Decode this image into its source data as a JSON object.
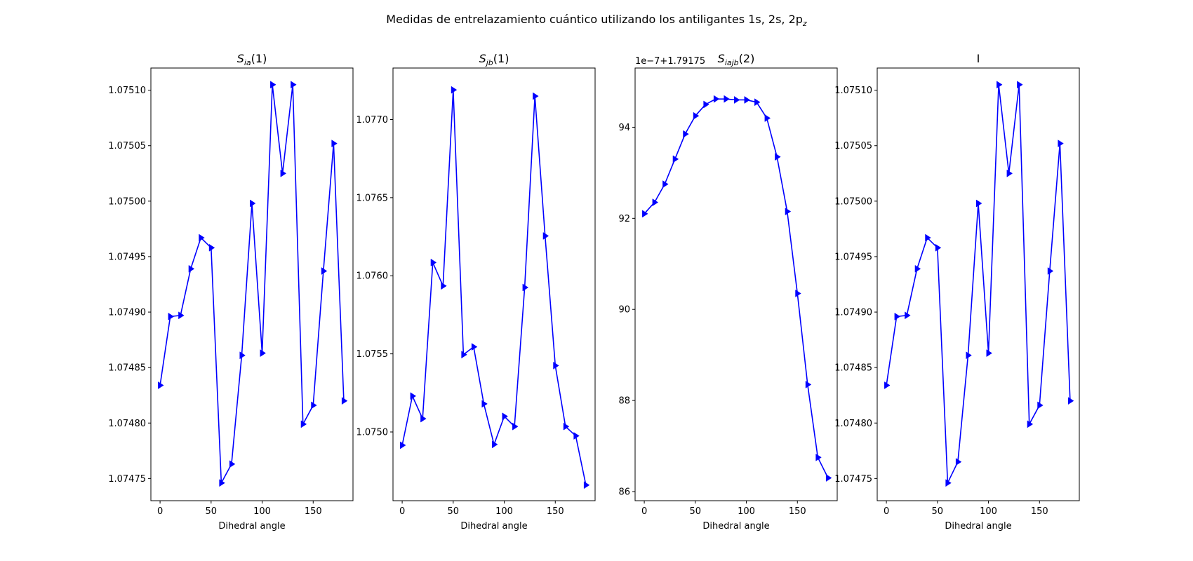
{
  "suptitle": {
    "main": "Medidas de entrelazamiento cuántico utilizando los antiligantes 1s, 2s, 2p",
    "sub": "z"
  },
  "colors": {
    "series": "#0000ff",
    "axis": "#000000",
    "background": "#ffffff"
  },
  "chart_data": [
    {
      "type": "line",
      "marker": "triangle-right",
      "title": {
        "base": "S",
        "sub": "ia",
        "suffix": "(1)"
      },
      "xlabel": "Dihedral angle",
      "x": [
        0,
        10,
        20,
        30,
        40,
        50,
        60,
        70,
        80,
        90,
        100,
        110,
        120,
        130,
        140,
        150,
        160,
        170,
        180
      ],
      "y": [
        1.074834,
        1.074896,
        1.074897,
        1.074939,
        1.074967,
        1.074958,
        1.074746,
        1.074763,
        1.074861,
        1.074998,
        1.074863,
        1.075105,
        1.075025,
        1.075105,
        1.074799,
        1.074816,
        1.074937,
        1.075052,
        1.07482
      ],
      "xlim": [
        -9,
        189
      ],
      "ylim": [
        1.07473,
        1.07512
      ],
      "xticks": [
        0,
        50,
        100,
        150
      ],
      "xtick_labels": [
        "0",
        "50",
        "100",
        "150"
      ],
      "yticks": [
        1.07475,
        1.0748,
        1.07485,
        1.0749,
        1.07495,
        1.075,
        1.07505,
        1.0751
      ],
      "ytick_labels": [
        "1.07475",
        "1.07480",
        "1.07485",
        "1.07490",
        "1.07495",
        "1.07500",
        "1.07505",
        "1.07510"
      ],
      "offset_text": "",
      "grid": false
    },
    {
      "type": "line",
      "marker": "triangle-right",
      "title": {
        "base": "S",
        "sub": "jb",
        "suffix": "(1)"
      },
      "xlabel": "Dihedral angle",
      "x": [
        0,
        10,
        20,
        30,
        40,
        50,
        60,
        70,
        80,
        90,
        100,
        110,
        120,
        130,
        140,
        150,
        160,
        170,
        180
      ],
      "y": [
        1.074915,
        1.07523,
        1.075085,
        1.076085,
        1.075935,
        1.07719,
        1.075495,
        1.075545,
        1.07518,
        1.07492,
        1.0751,
        1.075035,
        1.075925,
        1.07715,
        1.076255,
        1.075425,
        1.075035,
        1.074975,
        1.07466
      ],
      "xlim": [
        -9,
        189
      ],
      "ylim": [
        1.07456,
        1.07733
      ],
      "xticks": [
        0,
        50,
        100,
        150
      ],
      "xtick_labels": [
        "0",
        "50",
        "100",
        "150"
      ],
      "yticks": [
        1.075,
        1.0755,
        1.076,
        1.0765,
        1.077
      ],
      "ytick_labels": [
        "1.0750",
        "1.0755",
        "1.0760",
        "1.0765",
        "1.0770"
      ],
      "offset_text": "",
      "grid": false
    },
    {
      "type": "line",
      "marker": "triangle-right",
      "title": {
        "base": "S",
        "sub": "iajb",
        "suffix": "(2)"
      },
      "xlabel": "Dihedral angle",
      "x": [
        0,
        10,
        20,
        30,
        40,
        50,
        60,
        70,
        80,
        90,
        100,
        110,
        120,
        130,
        140,
        150,
        160,
        170,
        180
      ],
      "y": [
        92.1,
        92.35,
        92.75,
        93.3,
        93.85,
        94.25,
        94.5,
        94.62,
        94.62,
        94.6,
        94.6,
        94.55,
        94.2,
        93.35,
        92.15,
        90.35,
        88.35,
        86.75,
        86.3
      ],
      "xlim": [
        -9,
        189
      ],
      "ylim": [
        85.8,
        95.3
      ],
      "xticks": [
        0,
        50,
        100,
        150
      ],
      "xtick_labels": [
        "0",
        "50",
        "100",
        "150"
      ],
      "yticks": [
        86,
        88,
        90,
        92,
        94
      ],
      "ytick_labels": [
        "86",
        "88",
        "90",
        "92",
        "94"
      ],
      "offset_text": "1e−7+1.79175",
      "grid": false
    },
    {
      "type": "line",
      "marker": "triangle-right",
      "title": {
        "base": "I",
        "sub": "",
        "suffix": ""
      },
      "xlabel": "Dihedral angle",
      "x": [
        0,
        10,
        20,
        30,
        40,
        50,
        60,
        70,
        80,
        90,
        100,
        110,
        120,
        130,
        140,
        150,
        160,
        170,
        180
      ],
      "y": [
        1.074834,
        1.074896,
        1.074897,
        1.074939,
        1.074967,
        1.074958,
        1.074746,
        1.074765,
        1.074861,
        1.074998,
        1.074863,
        1.075105,
        1.075025,
        1.075105,
        1.074799,
        1.074816,
        1.074937,
        1.075052,
        1.07482
      ],
      "xlim": [
        -9,
        189
      ],
      "ylim": [
        1.07473,
        1.07512
      ],
      "xticks": [
        0,
        50,
        100,
        150
      ],
      "xtick_labels": [
        "0",
        "50",
        "100",
        "150"
      ],
      "yticks": [
        1.07475,
        1.0748,
        1.07485,
        1.0749,
        1.07495,
        1.075,
        1.07505,
        1.0751
      ],
      "ytick_labels": [
        "1.07475",
        "1.07480",
        "1.07485",
        "1.07490",
        "1.07495",
        "1.07500",
        "1.07505",
        "1.07510"
      ],
      "offset_text": "",
      "grid": false
    }
  ]
}
